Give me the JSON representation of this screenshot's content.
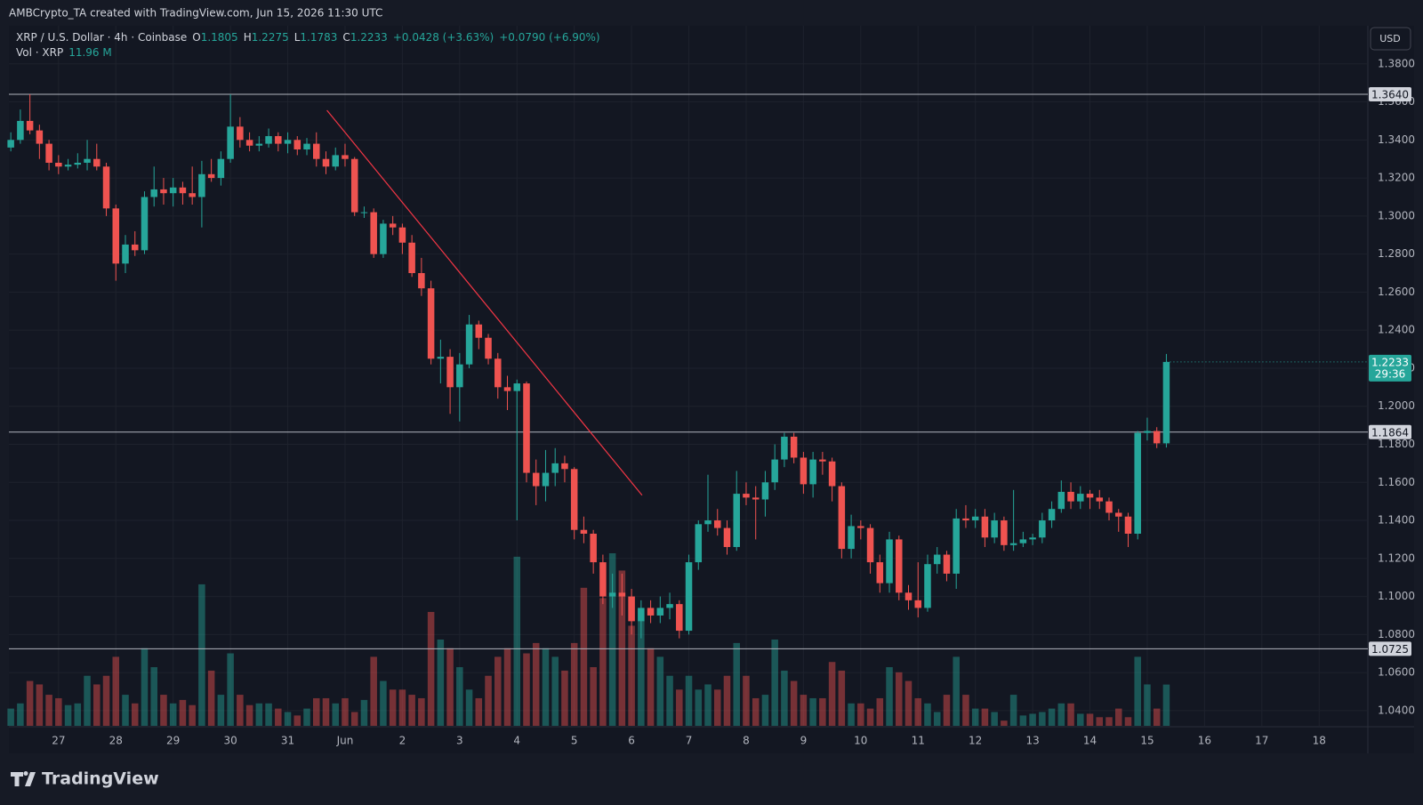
{
  "chart_data": {
    "type": "candlestick",
    "header_note": "AMBCrypto_TA created with TradingView.com, Jun 15, 2026 11:30 UTC",
    "symbol": "XRP / U.S. Dollar · 4h · Coinbase",
    "ohlc_keys": [
      "O",
      "H",
      "L",
      "C"
    ],
    "change": "+0.0428 (+3.63%)",
    "change_day": "+0.0790 (+6.90%)",
    "volume_name": "Vol · XRP",
    "volume_label": "11.96 M",
    "currency": "USD",
    "countdown": "29:36",
    "brand": "TradingView",
    "up_color": "#26a69a",
    "down_color": "#ef5350",
    "ohlc": [
      [
        1.336,
        1.344,
        1.334,
        1.34
      ],
      [
        1.34,
        1.356,
        1.338,
        1.35
      ],
      [
        1.35,
        1.364,
        1.343,
        1.345
      ],
      [
        1.345,
        1.348,
        1.33,
        1.338
      ],
      [
        1.338,
        1.34,
        1.324,
        1.328
      ],
      [
        1.328,
        1.332,
        1.322,
        1.326
      ],
      [
        1.326,
        1.33,
        1.324,
        1.327
      ],
      [
        1.327,
        1.333,
        1.325,
        1.328
      ],
      [
        1.328,
        1.34,
        1.324,
        1.33
      ],
      [
        1.33,
        1.338,
        1.324,
        1.326
      ],
      [
        1.326,
        1.328,
        1.3,
        1.304
      ],
      [
        1.304,
        1.306,
        1.266,
        1.275
      ],
      [
        1.275,
        1.29,
        1.27,
        1.285
      ],
      [
        1.285,
        1.292,
        1.279,
        1.282
      ],
      [
        1.282,
        1.313,
        1.28,
        1.31
      ],
      [
        1.31,
        1.326,
        1.305,
        1.314
      ],
      [
        1.314,
        1.32,
        1.306,
        1.312
      ],
      [
        1.312,
        1.32,
        1.305,
        1.315
      ],
      [
        1.315,
        1.318,
        1.306,
        1.312
      ],
      [
        1.312,
        1.326,
        1.306,
        1.31
      ],
      [
        1.31,
        1.329,
        1.294,
        1.322
      ],
      [
        1.322,
        1.33,
        1.318,
        1.32
      ],
      [
        1.32,
        1.334,
        1.316,
        1.33
      ],
      [
        1.33,
        1.364,
        1.328,
        1.347
      ],
      [
        1.347,
        1.352,
        1.336,
        1.34
      ],
      [
        1.34,
        1.344,
        1.334,
        1.337
      ],
      [
        1.337,
        1.342,
        1.334,
        1.338
      ],
      [
        1.338,
        1.346,
        1.336,
        1.342
      ],
      [
        1.342,
        1.344,
        1.334,
        1.338
      ],
      [
        1.338,
        1.344,
        1.333,
        1.34
      ],
      [
        1.34,
        1.342,
        1.332,
        1.335
      ],
      [
        1.335,
        1.341,
        1.332,
        1.338
      ],
      [
        1.338,
        1.344,
        1.326,
        1.33
      ],
      [
        1.33,
        1.334,
        1.322,
        1.326
      ],
      [
        1.326,
        1.336,
        1.324,
        1.332
      ],
      [
        1.332,
        1.338,
        1.326,
        1.33
      ],
      [
        1.33,
        1.331,
        1.3,
        1.302
      ],
      [
        1.302,
        1.305,
        1.299,
        1.302
      ],
      [
        1.302,
        1.304,
        1.278,
        1.28
      ],
      [
        1.28,
        1.298,
        1.278,
        1.296
      ],
      [
        1.296,
        1.3,
        1.29,
        1.294
      ],
      [
        1.294,
        1.296,
        1.28,
        1.286
      ],
      [
        1.286,
        1.29,
        1.268,
        1.27
      ],
      [
        1.27,
        1.278,
        1.258,
        1.262
      ],
      [
        1.262,
        1.266,
        1.222,
        1.225
      ],
      [
        1.225,
        1.235,
        1.212,
        1.226
      ],
      [
        1.226,
        1.23,
        1.196,
        1.21
      ],
      [
        1.21,
        1.228,
        1.192,
        1.222
      ],
      [
        1.222,
        1.248,
        1.22,
        1.243
      ],
      [
        1.243,
        1.245,
        1.23,
        1.236
      ],
      [
        1.236,
        1.238,
        1.222,
        1.225
      ],
      [
        1.225,
        1.228,
        1.204,
        1.21
      ],
      [
        1.21,
        1.216,
        1.198,
        1.208
      ],
      [
        1.208,
        1.214,
        1.14,
        1.212
      ],
      [
        1.212,
        1.213,
        1.16,
        1.165
      ],
      [
        1.165,
        1.172,
        1.148,
        1.158
      ],
      [
        1.158,
        1.177,
        1.15,
        1.165
      ],
      [
        1.165,
        1.178,
        1.158,
        1.17
      ],
      [
        1.17,
        1.174,
        1.16,
        1.167
      ],
      [
        1.167,
        1.168,
        1.13,
        1.135
      ],
      [
        1.135,
        1.142,
        1.128,
        1.133
      ],
      [
        1.133,
        1.135,
        1.112,
        1.118
      ],
      [
        1.118,
        1.122,
        1.096,
        1.1
      ],
      [
        1.1,
        1.112,
        1.094,
        1.102
      ],
      [
        1.102,
        1.112,
        1.09,
        1.1
      ],
      [
        1.1,
        1.104,
        1.08,
        1.087
      ],
      [
        1.087,
        1.098,
        1.078,
        1.094
      ],
      [
        1.094,
        1.098,
        1.086,
        1.09
      ],
      [
        1.09,
        1.1,
        1.086,
        1.094
      ],
      [
        1.094,
        1.102,
        1.088,
        1.096
      ],
      [
        1.096,
        1.098,
        1.078,
        1.082
      ],
      [
        1.082,
        1.122,
        1.08,
        1.118
      ],
      [
        1.118,
        1.14,
        1.114,
        1.138
      ],
      [
        1.138,
        1.164,
        1.134,
        1.14
      ],
      [
        1.14,
        1.146,
        1.132,
        1.136
      ],
      [
        1.136,
        1.14,
        1.122,
        1.126
      ],
      [
        1.126,
        1.166,
        1.124,
        1.154
      ],
      [
        1.154,
        1.16,
        1.148,
        1.152
      ],
      [
        1.152,
        1.158,
        1.13,
        1.151
      ],
      [
        1.151,
        1.166,
        1.142,
        1.16
      ],
      [
        1.16,
        1.18,
        1.156,
        1.172
      ],
      [
        1.172,
        1.186,
        1.168,
        1.184
      ],
      [
        1.184,
        1.186,
        1.17,
        1.173
      ],
      [
        1.173,
        1.176,
        1.154,
        1.159
      ],
      [
        1.159,
        1.176,
        1.152,
        1.172
      ],
      [
        1.172,
        1.176,
        1.164,
        1.171
      ],
      [
        1.171,
        1.173,
        1.15,
        1.158
      ],
      [
        1.158,
        1.16,
        1.12,
        1.125
      ],
      [
        1.125,
        1.143,
        1.12,
        1.137
      ],
      [
        1.137,
        1.14,
        1.13,
        1.136
      ],
      [
        1.136,
        1.138,
        1.112,
        1.118
      ],
      [
        1.118,
        1.122,
        1.102,
        1.107
      ],
      [
        1.107,
        1.134,
        1.102,
        1.13
      ],
      [
        1.13,
        1.132,
        1.098,
        1.102
      ],
      [
        1.102,
        1.106,
        1.093,
        1.098
      ],
      [
        1.098,
        1.118,
        1.089,
        1.094
      ],
      [
        1.094,
        1.122,
        1.092,
        1.117
      ],
      [
        1.117,
        1.126,
        1.112,
        1.122
      ],
      [
        1.122,
        1.124,
        1.108,
        1.112
      ],
      [
        1.112,
        1.146,
        1.104,
        1.141
      ],
      [
        1.141,
        1.148,
        1.136,
        1.14
      ],
      [
        1.14,
        1.146,
        1.136,
        1.142
      ],
      [
        1.142,
        1.146,
        1.126,
        1.131
      ],
      [
        1.131,
        1.144,
        1.128,
        1.14
      ],
      [
        1.14,
        1.142,
        1.124,
        1.127
      ],
      [
        1.127,
        1.156,
        1.124,
        1.128
      ],
      [
        1.128,
        1.134,
        1.126,
        1.13
      ],
      [
        1.13,
        1.133,
        1.127,
        1.131
      ],
      [
        1.131,
        1.144,
        1.128,
        1.14
      ],
      [
        1.14,
        1.15,
        1.136,
        1.146
      ],
      [
        1.146,
        1.161,
        1.144,
        1.155
      ],
      [
        1.155,
        1.16,
        1.146,
        1.15
      ],
      [
        1.15,
        1.158,
        1.146,
        1.154
      ],
      [
        1.154,
        1.156,
        1.146,
        1.152
      ],
      [
        1.152,
        1.156,
        1.146,
        1.15
      ],
      [
        1.15,
        1.152,
        1.14,
        1.144
      ],
      [
        1.144,
        1.146,
        1.134,
        1.142
      ],
      [
        1.142,
        1.144,
        1.126,
        1.133
      ],
      [
        1.133,
        1.187,
        1.13,
        1.186
      ],
      [
        1.186,
        1.194,
        1.182,
        1.187
      ],
      [
        1.187,
        1.189,
        1.178,
        1.1805
      ],
      [
        1.1805,
        1.2275,
        1.1783,
        1.2233
      ]
    ],
    "volume": [
      5,
      6.5,
      13,
      12,
      9,
      8,
      6,
      6.5,
      14.5,
      12,
      14.5,
      20,
      9,
      6.5,
      22.5,
      17,
      9,
      6.5,
      7.5,
      6,
      41,
      16,
      9,
      21,
      9,
      6,
      6.5,
      6.5,
      5,
      4,
      3,
      5,
      8,
      8,
      6.5,
      8,
      4,
      7.5,
      20,
      13,
      10.5,
      10.5,
      9,
      8,
      33,
      25,
      22.5,
      17,
      10.5,
      8,
      14.5,
      20,
      22.5,
      49,
      21,
      24,
      22.5,
      20,
      16,
      24,
      40,
      17,
      37,
      50,
      45,
      29,
      30.5,
      22.5,
      20,
      14.5,
      10.5,
      14.5,
      10.5,
      12,
      10.5,
      14.5,
      24,
      14.5,
      8,
      9,
      25,
      16,
      13,
      9,
      8,
      8,
      18.5,
      16,
      6.5,
      6.5,
      5,
      8,
      17,
      15.5,
      13,
      8,
      6.5,
      4,
      9,
      20,
      9,
      5,
      5,
      4,
      1.5,
      9,
      3,
      3.5,
      4,
      5,
      6.5,
      6.5,
      3.5,
      3.5,
      2.5,
      2.5,
      5,
      2.5,
      20,
      12,
      5,
      11.96
    ],
    "xlim": [
      -0.2,
      142.1
    ],
    "xticks": [
      {
        "value": 5,
        "label": "27"
      },
      {
        "value": 11,
        "label": "28"
      },
      {
        "value": 17,
        "label": "29"
      },
      {
        "value": 23,
        "label": "30"
      },
      {
        "value": 29,
        "label": "31"
      },
      {
        "value": 35,
        "label": "Jun"
      },
      {
        "value": 41,
        "label": "2"
      },
      {
        "value": 47,
        "label": "3"
      },
      {
        "value": 53,
        "label": "4"
      },
      {
        "value": 59,
        "label": "5"
      },
      {
        "value": 65,
        "label": "6"
      },
      {
        "value": 71,
        "label": "7"
      },
      {
        "value": 77,
        "label": "8"
      },
      {
        "value": 83,
        "label": "9"
      },
      {
        "value": 89,
        "label": "10"
      },
      {
        "value": 95,
        "label": "11"
      },
      {
        "value": 101,
        "label": "12"
      },
      {
        "value": 107,
        "label": "13"
      },
      {
        "value": 113,
        "label": "14"
      },
      {
        "value": 119,
        "label": "15"
      },
      {
        "value": 125,
        "label": "16"
      },
      {
        "value": 131,
        "label": "17"
      },
      {
        "value": 137,
        "label": "18"
      }
    ],
    "ylim": [
      1.032,
      1.4
    ],
    "yticks": [
      {
        "value": 1.04,
        "label": "1.0400"
      },
      {
        "value": 1.06,
        "label": "1.0600"
      },
      {
        "value": 1.08,
        "label": "1.0800"
      },
      {
        "value": 1.1,
        "label": "1.1000"
      },
      {
        "value": 1.12,
        "label": "1.1200"
      },
      {
        "value": 1.14,
        "label": "1.1400"
      },
      {
        "value": 1.16,
        "label": "1.1600"
      },
      {
        "value": 1.18,
        "label": "1.1800"
      },
      {
        "value": 1.2,
        "label": "1.2000"
      },
      {
        "value": 1.22,
        "label": "1.2200"
      },
      {
        "value": 1.24,
        "label": "1.2400"
      },
      {
        "value": 1.26,
        "label": "1.2600"
      },
      {
        "value": 1.28,
        "label": "1.2800"
      },
      {
        "value": 1.3,
        "label": "1.3000"
      },
      {
        "value": 1.32,
        "label": "1.3200"
      },
      {
        "value": 1.34,
        "label": "1.3400"
      },
      {
        "value": 1.36,
        "label": "1.3600"
      },
      {
        "value": 1.38,
        "label": "1.3800"
      }
    ],
    "grid": true,
    "levels": [
      {
        "value": 1.364,
        "label": "1.3640"
      },
      1.1864,
      1.0725
    ],
    "trendline": {
      "x": [
        33.1,
        66.1
      ],
      "y": [
        1.3556,
        1.1532
      ],
      "color": "#f23645"
    }
  }
}
